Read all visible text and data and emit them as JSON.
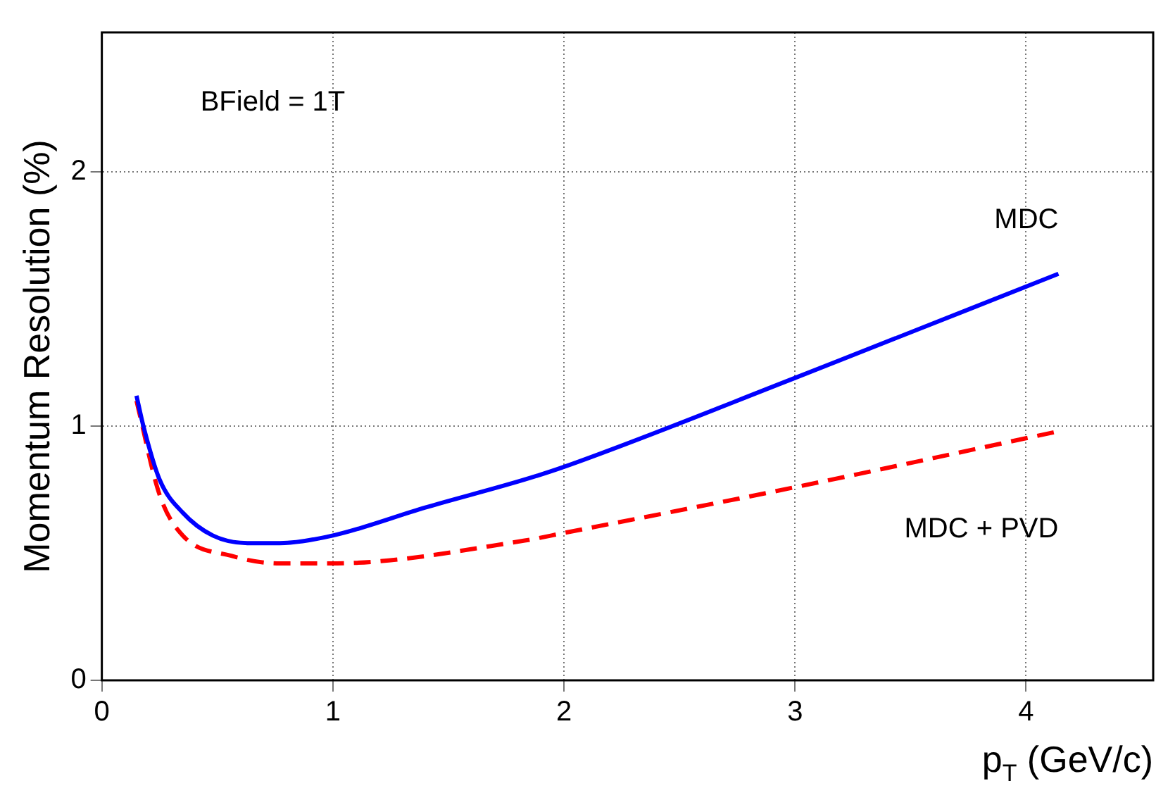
{
  "chart_data": {
    "type": "line",
    "xlabel": "p$_{T}$ (GeV/c)",
    "ylabel": "Momentum Resolution (%)",
    "xlim": [
      0,
      4.55
    ],
    "xticks": [
      0,
      1,
      2,
      3,
      4
    ],
    "ylim": [
      0,
      2.55
    ],
    "yticks": [
      0,
      1,
      2
    ],
    "grid": true,
    "legend": false,
    "marker": "none",
    "series": [
      {
        "name": "MDC",
        "color": "#0000ff",
        "line_style": "solid",
        "x": [
          0.15,
          0.18,
          0.25,
          0.35,
          0.48,
          0.63,
          0.77,
          1.0,
          1.4,
          1.83,
          2.0,
          3.0,
          4.14
        ],
        "values": [
          1.12,
          1.0,
          0.79,
          0.66,
          0.57,
          0.54,
          0.54,
          0.57,
          0.68,
          0.79,
          0.84,
          1.19,
          1.6
        ]
      },
      {
        "name": "MDC + PVD",
        "color": "#ff0000",
        "line_style": "dashed",
        "x": [
          0.15,
          0.25,
          0.35,
          0.56,
          0.77,
          0.99,
          1.83,
          2.0,
          3.0,
          4.14
        ],
        "values": [
          1.1,
          0.73,
          0.57,
          0.49,
          0.46,
          0.46,
          0.55,
          0.58,
          0.76,
          0.98
        ]
      }
    ],
    "annotations": [
      "BField = 1T"
    ]
  }
}
